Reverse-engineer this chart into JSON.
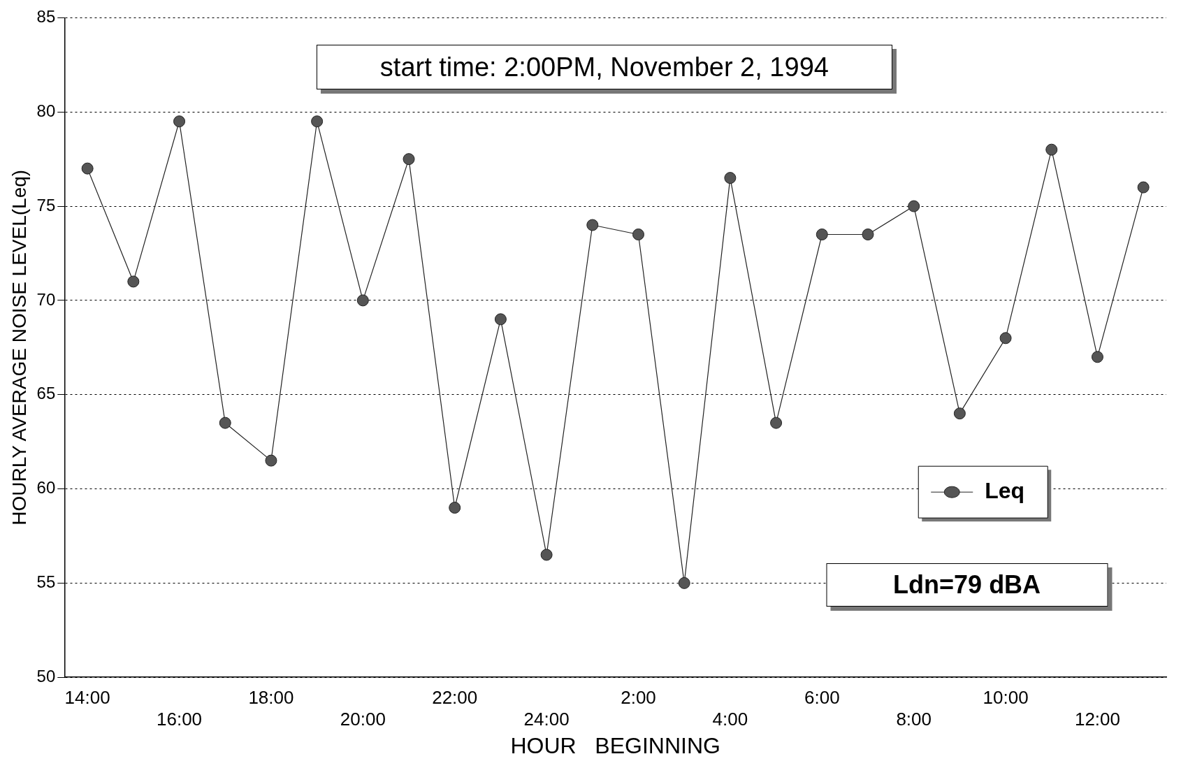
{
  "chart_data": {
    "type": "line",
    "xlabel": "HOUR   BEGINNING",
    "ylabel": "HOURLY AVERAGE NOISE LEVEL(Leq)",
    "categories": [
      "14:00",
      null,
      "16:00",
      null,
      "18:00",
      null,
      "20:00",
      null,
      "22:00",
      null,
      "24:00",
      null,
      "2:00",
      null,
      "4:00",
      null,
      "6:00",
      null,
      "8:00",
      null,
      "10:00",
      null,
      "12:00",
      null
    ],
    "series": [
      {
        "name": "Leq",
        "color": "#555555",
        "values": [
          77,
          71,
          79.5,
          63.5,
          61.5,
          79.5,
          70,
          77.5,
          59,
          69,
          56.5,
          74,
          73.5,
          55,
          76.5,
          63.5,
          73.5,
          73.5,
          75,
          64,
          68,
          78,
          67,
          76
        ]
      }
    ],
    "ylim": [
      50,
      85
    ],
    "yticks": [
      50,
      55,
      60,
      65,
      70,
      75,
      80,
      85
    ],
    "grid": "y",
    "legend": "right",
    "marker": "circle",
    "line_style": "solid",
    "annotations": [
      "start time: 2:00PM, November 2, 1994",
      "Ldn=79 dBA"
    ]
  }
}
